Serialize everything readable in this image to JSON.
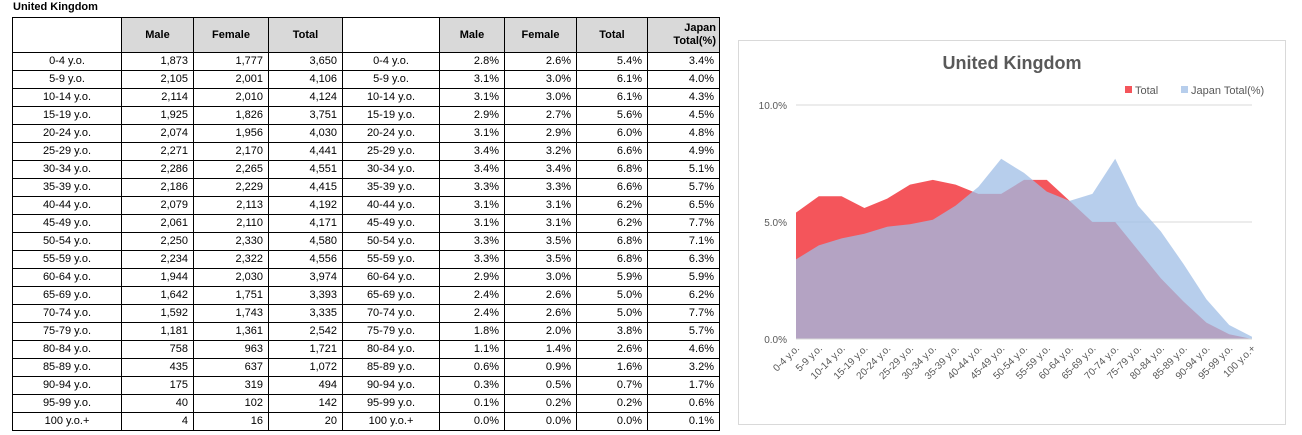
{
  "title": "United Kingdom",
  "table1": {
    "headers": [
      "",
      "Male",
      "Female",
      "Total"
    ],
    "rows": [
      [
        "0-4 y.o.",
        "1,873",
        "1,777",
        "3,650"
      ],
      [
        "5-9 y.o.",
        "2,105",
        "2,001",
        "4,106"
      ],
      [
        "10-14 y.o.",
        "2,114",
        "2,010",
        "4,124"
      ],
      [
        "15-19 y.o.",
        "1,925",
        "1,826",
        "3,751"
      ],
      [
        "20-24 y.o.",
        "2,074",
        "1,956",
        "4,030"
      ],
      [
        "25-29 y.o.",
        "2,271",
        "2,170",
        "4,441"
      ],
      [
        "30-34 y.o.",
        "2,286",
        "2,265",
        "4,551"
      ],
      [
        "35-39 y.o.",
        "2,186",
        "2,229",
        "4,415"
      ],
      [
        "40-44 y.o.",
        "2,079",
        "2,113",
        "4,192"
      ],
      [
        "45-49 y.o.",
        "2,061",
        "2,110",
        "4,171"
      ],
      [
        "50-54 y.o.",
        "2,250",
        "2,330",
        "4,580"
      ],
      [
        "55-59 y.o.",
        "2,234",
        "2,322",
        "4,556"
      ],
      [
        "60-64 y.o.",
        "1,944",
        "2,030",
        "3,974"
      ],
      [
        "65-69 y.o.",
        "1,642",
        "1,751",
        "3,393"
      ],
      [
        "70-74 y.o.",
        "1,592",
        "1,743",
        "3,335"
      ],
      [
        "75-79 y.o.",
        "1,181",
        "1,361",
        "2,542"
      ],
      [
        "80-84 y.o.",
        "758",
        "963",
        "1,721"
      ],
      [
        "85-89 y.o.",
        "435",
        "637",
        "1,072"
      ],
      [
        "90-94 y.o.",
        "175",
        "319",
        "494"
      ],
      [
        "95-99 y.o.",
        "40",
        "102",
        "142"
      ],
      [
        "100 y.o.+",
        "4",
        "16",
        "20"
      ]
    ]
  },
  "table2": {
    "headers": [
      "",
      "Male",
      "Female",
      "Total",
      "Japan Total(%)"
    ],
    "rows": [
      [
        "0-4 y.o.",
        "2.8%",
        "2.6%",
        "5.4%",
        "3.4%"
      ],
      [
        "5-9 y.o.",
        "3.1%",
        "3.0%",
        "6.1%",
        "4.0%"
      ],
      [
        "10-14 y.o.",
        "3.1%",
        "3.0%",
        "6.1%",
        "4.3%"
      ],
      [
        "15-19 y.o.",
        "2.9%",
        "2.7%",
        "5.6%",
        "4.5%"
      ],
      [
        "20-24 y.o.",
        "3.1%",
        "2.9%",
        "6.0%",
        "4.8%"
      ],
      [
        "25-29 y.o.",
        "3.4%",
        "3.2%",
        "6.6%",
        "4.9%"
      ],
      [
        "30-34 y.o.",
        "3.4%",
        "3.4%",
        "6.8%",
        "5.1%"
      ],
      [
        "35-39 y.o.",
        "3.3%",
        "3.3%",
        "6.6%",
        "5.7%"
      ],
      [
        "40-44 y.o.",
        "3.1%",
        "3.1%",
        "6.2%",
        "6.5%"
      ],
      [
        "45-49 y.o.",
        "3.1%",
        "3.1%",
        "6.2%",
        "7.7%"
      ],
      [
        "50-54 y.o.",
        "3.3%",
        "3.5%",
        "6.8%",
        "7.1%"
      ],
      [
        "55-59 y.o.",
        "3.3%",
        "3.5%",
        "6.8%",
        "6.3%"
      ],
      [
        "60-64 y.o.",
        "2.9%",
        "3.0%",
        "5.9%",
        "5.9%"
      ],
      [
        "65-69 y.o.",
        "2.4%",
        "2.6%",
        "5.0%",
        "6.2%"
      ],
      [
        "70-74 y.o.",
        "2.4%",
        "2.6%",
        "5.0%",
        "7.7%"
      ],
      [
        "75-79 y.o.",
        "1.8%",
        "2.0%",
        "3.8%",
        "5.7%"
      ],
      [
        "80-84 y.o.",
        "1.1%",
        "1.4%",
        "2.6%",
        "4.6%"
      ],
      [
        "85-89 y.o.",
        "0.6%",
        "0.9%",
        "1.6%",
        "3.2%"
      ],
      [
        "90-94 y.o.",
        "0.3%",
        "0.5%",
        "0.7%",
        "1.7%"
      ],
      [
        "95-99 y.o.",
        "0.1%",
        "0.2%",
        "0.2%",
        "0.6%"
      ],
      [
        "100 y.o.+",
        "0.0%",
        "0.0%",
        "0.0%",
        "0.1%"
      ]
    ]
  },
  "chart_data": {
    "type": "area",
    "title": "United Kingdom",
    "categories": [
      "0-4 y.o.",
      "5-9 y.o.",
      "10-14 y.o.",
      "15-19 y.o.",
      "20-24 y.o.",
      "25-29 y.o.",
      "30-34 y.o.",
      "35-39 y.o.",
      "40-44 y.o.",
      "45-49 y.o.",
      "50-54 y.o.",
      "55-59 y.o.",
      "60-64 y.o.",
      "65-69 y.o.",
      "70-74 y.o.",
      "75-79 y.o.",
      "80-84 y.o.",
      "85-89 y.o.",
      "90-94 y.o.",
      "95-99 y.o.",
      "100 y.o.+"
    ],
    "series": [
      {
        "name": "Total",
        "color": "#f4555b",
        "values": [
          5.4,
          6.1,
          6.1,
          5.6,
          6.0,
          6.6,
          6.8,
          6.6,
          6.2,
          6.2,
          6.8,
          6.8,
          5.9,
          5.0,
          5.0,
          3.8,
          2.6,
          1.6,
          0.7,
          0.2,
          0.0
        ]
      },
      {
        "name": "Japan Total(%)",
        "color": "#9fbde6",
        "values": [
          3.4,
          4.0,
          4.3,
          4.5,
          4.8,
          4.9,
          5.1,
          5.7,
          6.5,
          7.7,
          7.1,
          6.3,
          5.9,
          6.2,
          7.7,
          5.7,
          4.6,
          3.2,
          1.7,
          0.6,
          0.1
        ]
      }
    ],
    "y_ticks": [
      "0.0%",
      "5.0%",
      "10.0%"
    ],
    "ylim": [
      0,
      10
    ],
    "grid": true,
    "legend": "top-right"
  }
}
